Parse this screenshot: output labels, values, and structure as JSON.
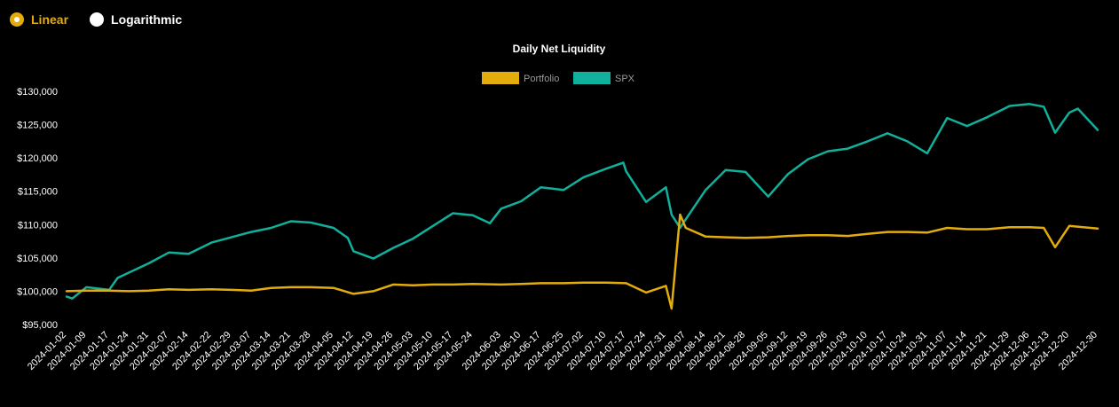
{
  "scale_toggle": {
    "linear_label": "Linear",
    "log_label": "Logarithmic",
    "selected": "Linear",
    "active_color": "#e3ac0d"
  },
  "chart_data": {
    "type": "line",
    "title": "Daily Net Liquidity",
    "xlabel": "",
    "ylabel": "",
    "ylim": [
      95000,
      130000
    ],
    "yticks": [
      95000,
      100000,
      105000,
      110000,
      115000,
      120000,
      125000,
      130000
    ],
    "ytick_labels": [
      "$95,000",
      "$100,000",
      "$105,000",
      "$110,000",
      "$115,000",
      "$120,000",
      "$125,000",
      "$130,000"
    ],
    "xticks": [
      "2024-01-02",
      "2024-01-09",
      "2024-01-17",
      "2024-01-24",
      "2024-01-31",
      "2024-02-07",
      "2024-02-14",
      "2024-02-22",
      "2024-02-29",
      "2024-03-07",
      "2024-03-14",
      "2024-03-21",
      "2024-03-28",
      "2024-04-05",
      "2024-04-12",
      "2024-04-19",
      "2024-04-26",
      "2024-05-03",
      "2024-05-10",
      "2024-05-17",
      "2024-05-24",
      "2024-06-03",
      "2024-06-10",
      "2024-06-17",
      "2024-06-25",
      "2024-07-02",
      "2024-07-10",
      "2024-07-17",
      "2024-07-24",
      "2024-07-31",
      "2024-08-07",
      "2024-08-14",
      "2024-08-21",
      "2024-08-28",
      "2024-09-05",
      "2024-09-12",
      "2024-09-19",
      "2024-09-26",
      "2024-10-03",
      "2024-10-10",
      "2024-10-17",
      "2024-10-24",
      "2024-10-31",
      "2024-11-07",
      "2024-11-14",
      "2024-11-21",
      "2024-11-29",
      "2024-12-06",
      "2024-12-13",
      "2024-12-20",
      "2024-12-30"
    ],
    "legend_position": "top-center",
    "grid": false,
    "series": [
      {
        "name": "Portfolio",
        "color": "#e3ac0d",
        "points": [
          [
            "2024-01-02",
            100000
          ],
          [
            "2024-01-09",
            100100
          ],
          [
            "2024-01-17",
            100100
          ],
          [
            "2024-01-24",
            100000
          ],
          [
            "2024-01-31",
            100100
          ],
          [
            "2024-02-07",
            100300
          ],
          [
            "2024-02-14",
            100200
          ],
          [
            "2024-02-22",
            100300
          ],
          [
            "2024-02-29",
            100200
          ],
          [
            "2024-03-07",
            100100
          ],
          [
            "2024-03-14",
            100500
          ],
          [
            "2024-03-21",
            100600
          ],
          [
            "2024-03-28",
            100600
          ],
          [
            "2024-04-05",
            100500
          ],
          [
            "2024-04-12",
            99600
          ],
          [
            "2024-04-19",
            100000
          ],
          [
            "2024-04-26",
            101000
          ],
          [
            "2024-05-03",
            100900
          ],
          [
            "2024-05-10",
            101000
          ],
          [
            "2024-05-17",
            101000
          ],
          [
            "2024-05-24",
            101100
          ],
          [
            "2024-06-03",
            101000
          ],
          [
            "2024-06-10",
            101100
          ],
          [
            "2024-06-17",
            101200
          ],
          [
            "2024-06-25",
            101200
          ],
          [
            "2024-07-02",
            101300
          ],
          [
            "2024-07-10",
            101300
          ],
          [
            "2024-07-17",
            101200
          ],
          [
            "2024-07-24",
            99800
          ],
          [
            "2024-07-31",
            100800
          ],
          [
            "2024-08-02",
            97400
          ],
          [
            "2024-08-05",
            111500
          ],
          [
            "2024-08-07",
            109500
          ],
          [
            "2024-08-14",
            108200
          ],
          [
            "2024-08-21",
            108100
          ],
          [
            "2024-08-28",
            108000
          ],
          [
            "2024-09-05",
            108100
          ],
          [
            "2024-09-12",
            108300
          ],
          [
            "2024-09-19",
            108400
          ],
          [
            "2024-09-26",
            108400
          ],
          [
            "2024-10-03",
            108300
          ],
          [
            "2024-10-10",
            108600
          ],
          [
            "2024-10-17",
            108900
          ],
          [
            "2024-10-24",
            108900
          ],
          [
            "2024-10-31",
            108800
          ],
          [
            "2024-11-07",
            109500
          ],
          [
            "2024-11-14",
            109300
          ],
          [
            "2024-11-21",
            109300
          ],
          [
            "2024-11-29",
            109600
          ],
          [
            "2024-12-06",
            109600
          ],
          [
            "2024-12-11",
            109500
          ],
          [
            "2024-12-15",
            106600
          ],
          [
            "2024-12-20",
            109800
          ],
          [
            "2024-12-30",
            109400
          ]
        ]
      },
      {
        "name": "SPX",
        "color": "#10b09c",
        "points": [
          [
            "2024-01-02",
            99200
          ],
          [
            "2024-01-04",
            98900
          ],
          [
            "2024-01-09",
            100600
          ],
          [
            "2024-01-17",
            100200
          ],
          [
            "2024-01-20",
            102000
          ],
          [
            "2024-01-24",
            102800
          ],
          [
            "2024-01-31",
            104200
          ],
          [
            "2024-02-07",
            105800
          ],
          [
            "2024-02-14",
            105600
          ],
          [
            "2024-02-22",
            107300
          ],
          [
            "2024-02-29",
            108100
          ],
          [
            "2024-03-07",
            108900
          ],
          [
            "2024-03-14",
            109500
          ],
          [
            "2024-03-21",
            110500
          ],
          [
            "2024-03-28",
            110300
          ],
          [
            "2024-04-05",
            109500
          ],
          [
            "2024-04-10",
            108000
          ],
          [
            "2024-04-12",
            106000
          ],
          [
            "2024-04-19",
            104900
          ],
          [
            "2024-04-26",
            106500
          ],
          [
            "2024-05-03",
            107900
          ],
          [
            "2024-05-10",
            109800
          ],
          [
            "2024-05-17",
            111700
          ],
          [
            "2024-05-24",
            111400
          ],
          [
            "2024-05-30",
            110200
          ],
          [
            "2024-06-03",
            112400
          ],
          [
            "2024-06-10",
            113500
          ],
          [
            "2024-06-17",
            115600
          ],
          [
            "2024-06-25",
            115200
          ],
          [
            "2024-07-02",
            117100
          ],
          [
            "2024-07-10",
            118400
          ],
          [
            "2024-07-16",
            119300
          ],
          [
            "2024-07-17",
            118000
          ],
          [
            "2024-07-24",
            113400
          ],
          [
            "2024-07-31",
            115600
          ],
          [
            "2024-08-02",
            111500
          ],
          [
            "2024-08-05",
            109500
          ],
          [
            "2024-08-07",
            110800
          ],
          [
            "2024-08-14",
            115200
          ],
          [
            "2024-08-21",
            118200
          ],
          [
            "2024-08-28",
            117900
          ],
          [
            "2024-09-05",
            114200
          ],
          [
            "2024-09-12",
            117600
          ],
          [
            "2024-09-19",
            119800
          ],
          [
            "2024-09-26",
            121000
          ],
          [
            "2024-10-03",
            121400
          ],
          [
            "2024-10-10",
            122500
          ],
          [
            "2024-10-17",
            123700
          ],
          [
            "2024-10-24",
            122500
          ],
          [
            "2024-10-31",
            120700
          ],
          [
            "2024-11-07",
            126000
          ],
          [
            "2024-11-14",
            124800
          ],
          [
            "2024-11-21",
            126100
          ],
          [
            "2024-11-29",
            127800
          ],
          [
            "2024-12-06",
            128100
          ],
          [
            "2024-12-11",
            127700
          ],
          [
            "2024-12-15",
            123800
          ],
          [
            "2024-12-20",
            126800
          ],
          [
            "2024-12-23",
            127400
          ],
          [
            "2024-12-30",
            124200
          ]
        ]
      }
    ]
  }
}
